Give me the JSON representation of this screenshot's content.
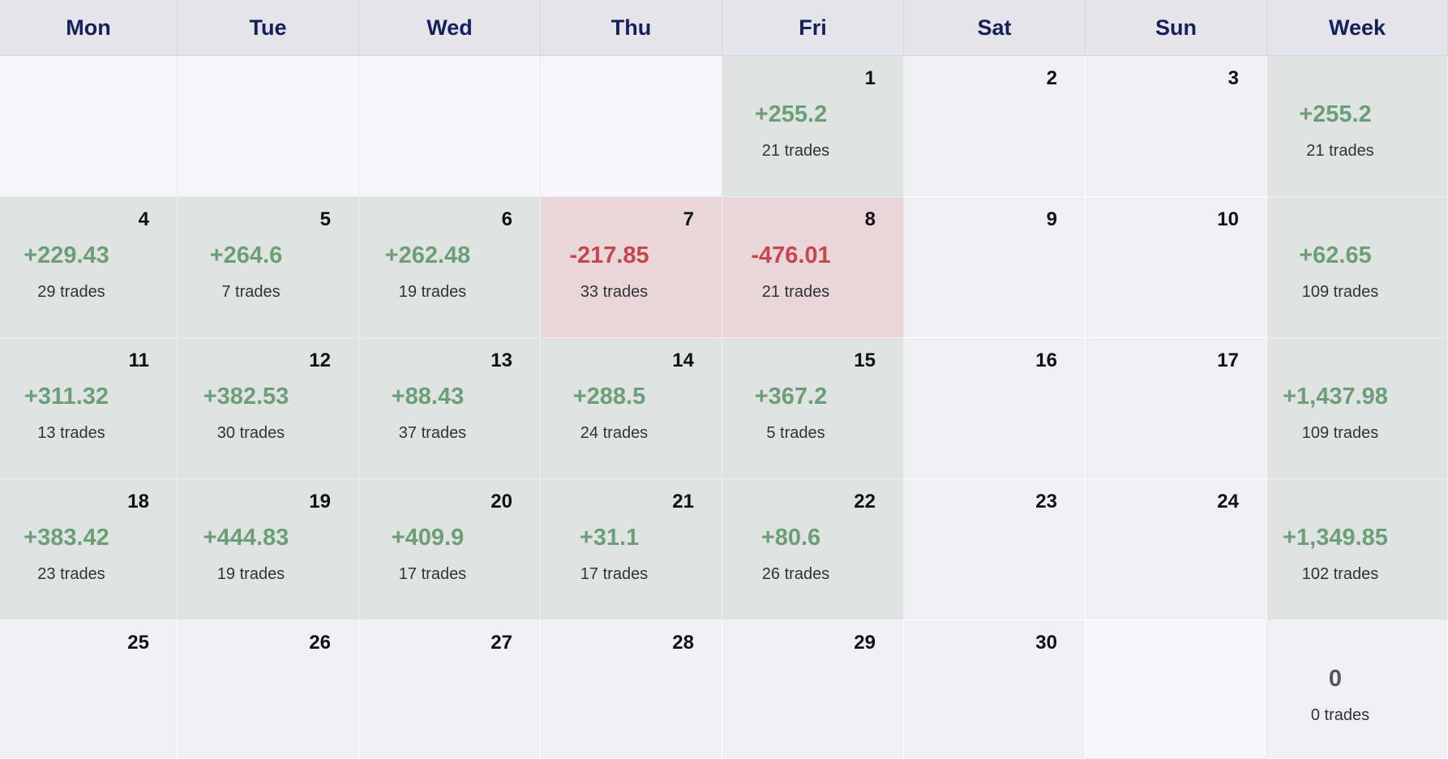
{
  "headers": [
    "Mon",
    "Tue",
    "Wed",
    "Thu",
    "Fri",
    "Sat",
    "Sun",
    "Week"
  ],
  "colors": {
    "gain": "#6c9f78",
    "loss": "#c8464e",
    "header_text": "#14205a",
    "gain_bg": "#dfe4e3",
    "loss_bg": "#e9d6da"
  },
  "weeks": [
    {
      "days": [
        {
          "day": "",
          "pnl": "",
          "trades": "",
          "status": "empty"
        },
        {
          "day": "",
          "pnl": "",
          "trades": "",
          "status": "empty"
        },
        {
          "day": "",
          "pnl": "",
          "trades": "",
          "status": "empty"
        },
        {
          "day": "",
          "pnl": "",
          "trades": "",
          "status": "empty"
        },
        {
          "day": "1",
          "pnl": "+255.2",
          "trades": "21 trades",
          "status": "pos"
        },
        {
          "day": "2",
          "pnl": "",
          "trades": "",
          "status": "none"
        },
        {
          "day": "3",
          "pnl": "",
          "trades": "",
          "status": "none"
        }
      ],
      "summary": {
        "pnl": "+255.2",
        "trades": "21 trades",
        "status": "pos"
      }
    },
    {
      "days": [
        {
          "day": "4",
          "pnl": "+229.43",
          "trades": "29 trades",
          "status": "pos"
        },
        {
          "day": "5",
          "pnl": "+264.6",
          "trades": "7 trades",
          "status": "pos"
        },
        {
          "day": "6",
          "pnl": "+262.48",
          "trades": "19 trades",
          "status": "pos"
        },
        {
          "day": "7",
          "pnl": "-217.85",
          "trades": "33 trades",
          "status": "neg"
        },
        {
          "day": "8",
          "pnl": "-476.01",
          "trades": "21 trades",
          "status": "neg"
        },
        {
          "day": "9",
          "pnl": "",
          "trades": "",
          "status": "none"
        },
        {
          "day": "10",
          "pnl": "",
          "trades": "",
          "status": "none"
        }
      ],
      "summary": {
        "pnl": "+62.65",
        "trades": "109 trades",
        "status": "pos"
      }
    },
    {
      "days": [
        {
          "day": "11",
          "pnl": "+311.32",
          "trades": "13 trades",
          "status": "pos"
        },
        {
          "day": "12",
          "pnl": "+382.53",
          "trades": "30 trades",
          "status": "pos"
        },
        {
          "day": "13",
          "pnl": "+88.43",
          "trades": "37 trades",
          "status": "pos"
        },
        {
          "day": "14",
          "pnl": "+288.5",
          "trades": "24 trades",
          "status": "pos"
        },
        {
          "day": "15",
          "pnl": "+367.2",
          "trades": "5 trades",
          "status": "pos"
        },
        {
          "day": "16",
          "pnl": "",
          "trades": "",
          "status": "none"
        },
        {
          "day": "17",
          "pnl": "",
          "trades": "",
          "status": "none"
        }
      ],
      "summary": {
        "pnl": "+1,437.98",
        "trades": "109 trades",
        "status": "pos"
      }
    },
    {
      "days": [
        {
          "day": "18",
          "pnl": "+383.42",
          "trades": "23 trades",
          "status": "pos"
        },
        {
          "day": "19",
          "pnl": "+444.83",
          "trades": "19 trades",
          "status": "pos"
        },
        {
          "day": "20",
          "pnl": "+409.9",
          "trades": "17 trades",
          "status": "pos"
        },
        {
          "day": "21",
          "pnl": "+31.1",
          "trades": "17 trades",
          "status": "pos"
        },
        {
          "day": "22",
          "pnl": "+80.6",
          "trades": "26 trades",
          "status": "pos"
        },
        {
          "day": "23",
          "pnl": "",
          "trades": "",
          "status": "none"
        },
        {
          "day": "24",
          "pnl": "",
          "trades": "",
          "status": "none"
        }
      ],
      "summary": {
        "pnl": "+1,349.85",
        "trades": "102 trades",
        "status": "pos"
      }
    },
    {
      "days": [
        {
          "day": "25",
          "pnl": "",
          "trades": "",
          "status": "none"
        },
        {
          "day": "26",
          "pnl": "",
          "trades": "",
          "status": "none"
        },
        {
          "day": "27",
          "pnl": "",
          "trades": "",
          "status": "none"
        },
        {
          "day": "28",
          "pnl": "",
          "trades": "",
          "status": "none"
        },
        {
          "day": "29",
          "pnl": "",
          "trades": "",
          "status": "none"
        },
        {
          "day": "30",
          "pnl": "",
          "trades": "",
          "status": "none"
        },
        {
          "day": "",
          "pnl": "",
          "trades": "",
          "status": "empty"
        }
      ],
      "summary": {
        "pnl": "0",
        "trades": "0 trades",
        "status": "zero"
      }
    }
  ]
}
